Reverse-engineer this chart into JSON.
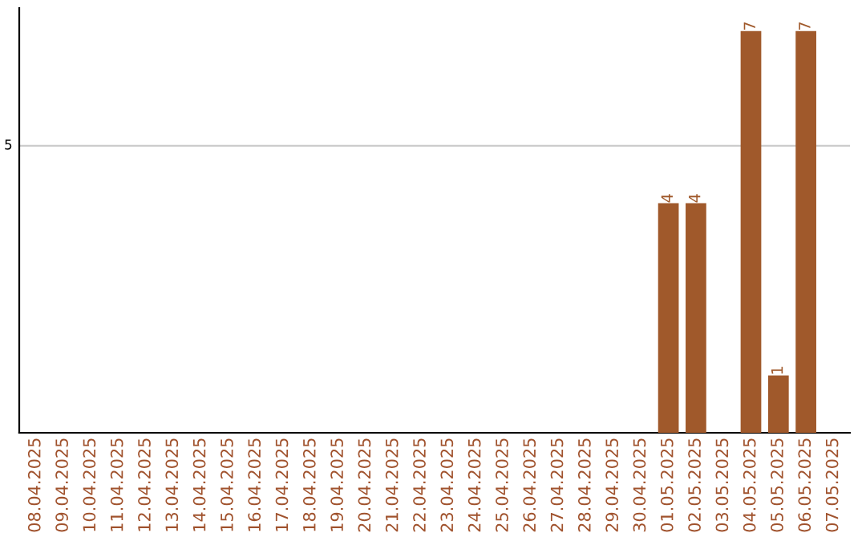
{
  "chart_data": {
    "type": "bar",
    "categories": [
      "08.04.2025",
      "09.04.2025",
      "10.04.2025",
      "11.04.2025",
      "12.04.2025",
      "13.04.2025",
      "14.04.2025",
      "15.04.2025",
      "16.04.2025",
      "17.04.2025",
      "18.04.2025",
      "19.04.2025",
      "20.04.2025",
      "21.04.2025",
      "22.04.2025",
      "23.04.2025",
      "24.04.2025",
      "25.04.2025",
      "26.04.2025",
      "27.04.2025",
      "28.04.2025",
      "29.04.2025",
      "30.04.2025",
      "01.05.2025",
      "02.05.2025",
      "03.05.2025",
      "04.05.2025",
      "05.05.2025",
      "06.05.2025",
      "07.05.2025"
    ],
    "values": [
      null,
      null,
      null,
      null,
      null,
      null,
      null,
      null,
      null,
      null,
      null,
      null,
      null,
      null,
      null,
      null,
      null,
      null,
      null,
      null,
      null,
      null,
      null,
      4,
      4,
      null,
      7,
      1,
      7,
      null
    ],
    "data_labels": true,
    "color": "#a0592b",
    "ylim": [
      0,
      7.4
    ],
    "ref_lines": [
      {
        "axis": "y",
        "value": 5,
        "label": "5",
        "color": "#cccccc"
      }
    ]
  }
}
